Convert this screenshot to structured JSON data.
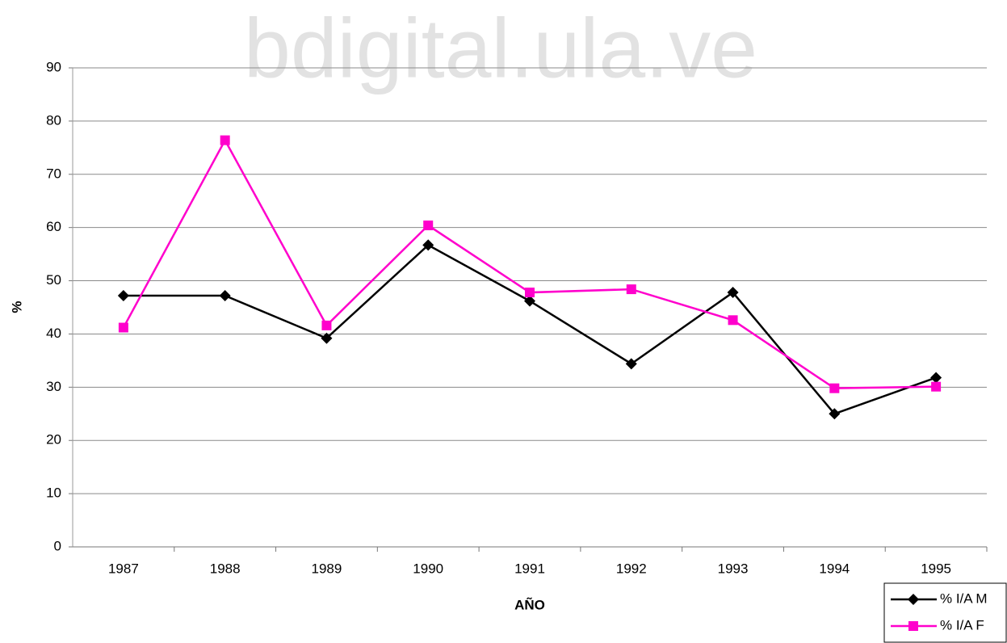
{
  "chart_data": {
    "type": "line",
    "watermark": "bdigital.ula.ve",
    "y_label": "%",
    "x_label": "AÑO",
    "categories": [
      "1987",
      "1988",
      "1989",
      "1990",
      "1991",
      "1992",
      "1993",
      "1994",
      "1995"
    ],
    "series": [
      {
        "name": "% I/A M",
        "color": "#000000",
        "marker": "diamond",
        "values": [
          47.2,
          47.2,
          39.2,
          56.7,
          46.2,
          34.4,
          47.8,
          25.0,
          31.8
        ]
      },
      {
        "name": "% I/A F",
        "color": "#ff00cc",
        "marker": "square",
        "values": [
          41.2,
          76.4,
          41.6,
          60.4,
          47.8,
          48.4,
          42.6,
          29.8,
          30.1
        ]
      }
    ],
    "ylim": [
      0,
      90
    ],
    "yticks": [
      0,
      10,
      20,
      30,
      40,
      50,
      60,
      70,
      80,
      90
    ],
    "grid": true,
    "legend": "bottom-right"
  }
}
